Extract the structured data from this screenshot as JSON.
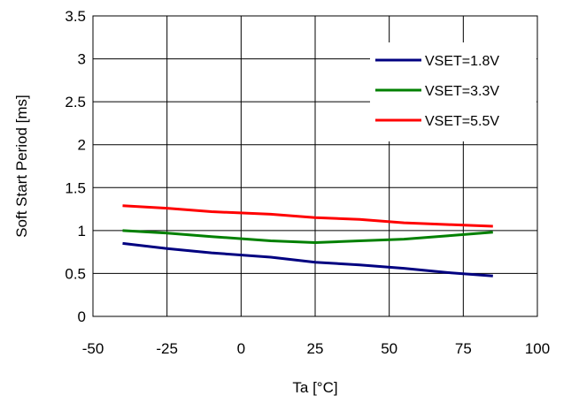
{
  "chart_data": {
    "type": "line",
    "title": "",
    "xlabel": "Ta [°C]",
    "ylabel": "Soft Start Period [ms]",
    "xlim": [
      -50,
      100
    ],
    "ylim": [
      0,
      3.5
    ],
    "xticks": [
      -50,
      -25,
      0,
      25,
      50,
      75,
      100
    ],
    "xtick_labels": [
      "-50",
      "-25",
      "0",
      "25",
      "50",
      "75",
      "100"
    ],
    "yticks": [
      0,
      0.5,
      1,
      1.5,
      2,
      2.5,
      3,
      3.5
    ],
    "ytick_labels": [
      "0",
      "0.5",
      "1",
      "1.5",
      "2",
      "2.5",
      "3",
      "3.5"
    ],
    "grid": true,
    "legend_position": "top-right",
    "series": [
      {
        "name": "VSET=1.8V",
        "color": "#000080",
        "x": [
          -40,
          -25,
          -10,
          10,
          25,
          40,
          55,
          70,
          85
        ],
        "y": [
          0.85,
          0.79,
          0.74,
          0.69,
          0.63,
          0.6,
          0.56,
          0.51,
          0.47
        ]
      },
      {
        "name": "VSET=3.3V",
        "color": "#008000",
        "x": [
          -40,
          -25,
          -10,
          10,
          25,
          40,
          55,
          70,
          85
        ],
        "y": [
          1.0,
          0.97,
          0.93,
          0.88,
          0.86,
          0.88,
          0.9,
          0.94,
          0.98
        ]
      },
      {
        "name": "VSET=5.5V",
        "color": "#ff0000",
        "x": [
          -40,
          -25,
          -10,
          10,
          25,
          40,
          55,
          70,
          85
        ],
        "y": [
          1.29,
          1.26,
          1.22,
          1.19,
          1.15,
          1.13,
          1.09,
          1.07,
          1.05
        ]
      }
    ]
  }
}
